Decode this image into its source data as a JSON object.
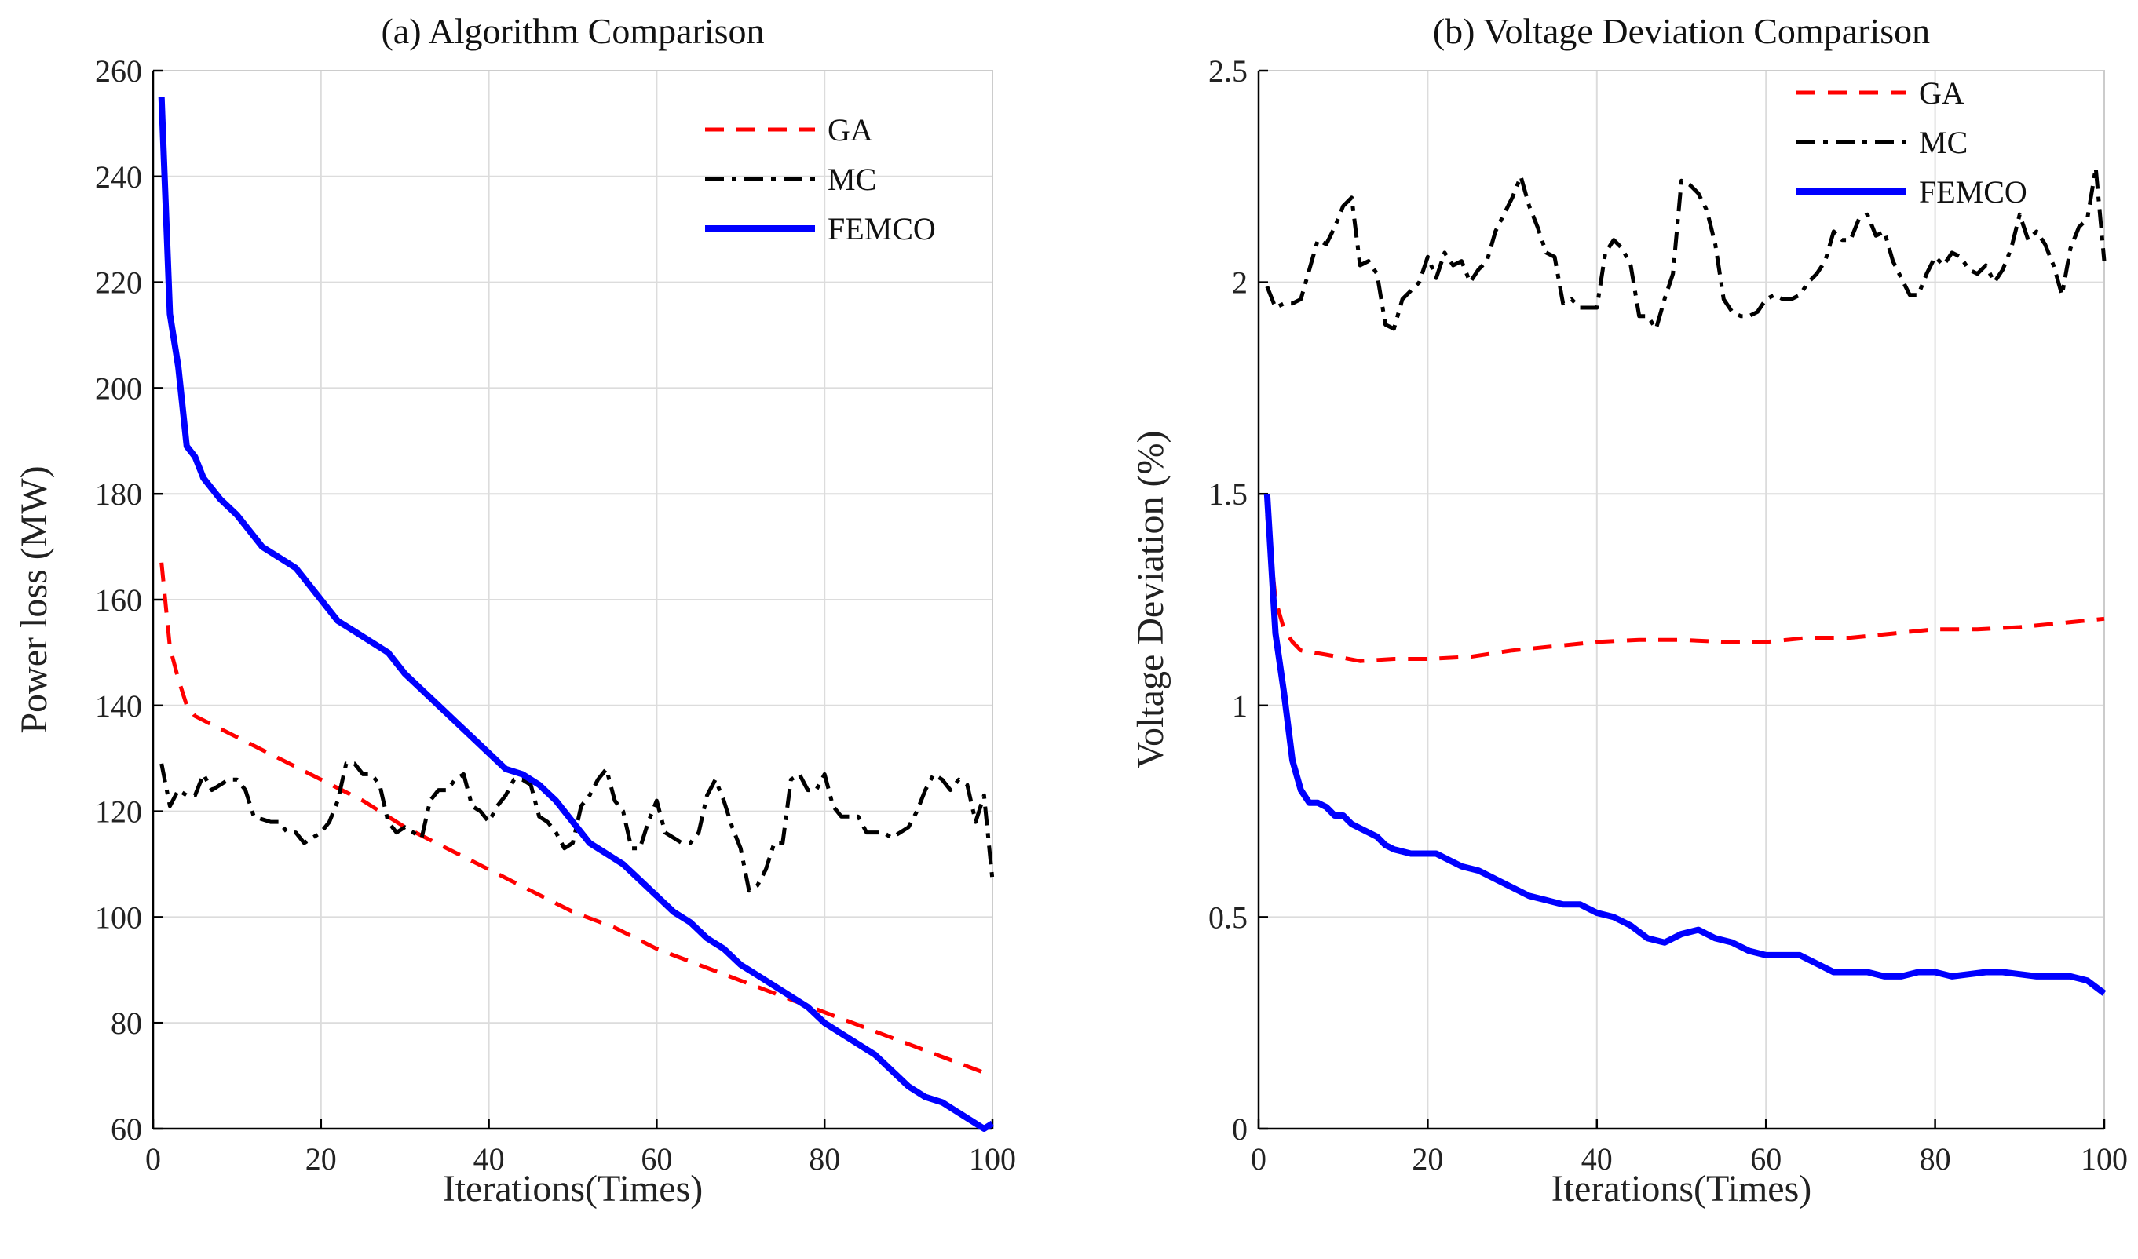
{
  "chart_data": [
    {
      "type": "line",
      "title": "(a) Algorithm Comparison",
      "xlabel": "Iterations(Times)",
      "ylabel": "Power loss (MW)",
      "xlim": [
        0,
        100
      ],
      "ylim": [
        60,
        260
      ],
      "xticks": [
        0,
        20,
        40,
        60,
        80,
        100
      ],
      "yticks": [
        60,
        80,
        100,
        120,
        140,
        160,
        180,
        200,
        220,
        240,
        260
      ],
      "grid": true,
      "legend_position": "top-right",
      "series": [
        {
          "name": "GA",
          "color": "#ff0000",
          "style": "dashed",
          "x": [
            1,
            2,
            3,
            4,
            5,
            10,
            15,
            20,
            25,
            30,
            35,
            40,
            45,
            50,
            55,
            60,
            65,
            70,
            75,
            80,
            85,
            90,
            95,
            100
          ],
          "y": [
            167,
            151,
            145,
            140,
            138,
            134,
            130,
            126,
            122,
            117,
            113,
            109,
            105,
            101,
            98,
            94,
            91,
            88,
            85,
            82,
            79,
            76,
            73,
            70
          ]
        },
        {
          "name": "MC",
          "color": "#000000",
          "style": "dashdot",
          "x": [
            1,
            2,
            3,
            4,
            5,
            6,
            7,
            8,
            9,
            10,
            11,
            12,
            14,
            15,
            16,
            17,
            18,
            20,
            21,
            22,
            23,
            24,
            25,
            26,
            27,
            28,
            29,
            30,
            31,
            32,
            33,
            34,
            35,
            36,
            37,
            38,
            39,
            40,
            41,
            42,
            43,
            44,
            45,
            46,
            47,
            48,
            49,
            50,
            51,
            52,
            53,
            54,
            55,
            56,
            57,
            58,
            59,
            60,
            61,
            62,
            63,
            64,
            65,
            66,
            67,
            68,
            69,
            70,
            71,
            72,
            73,
            74,
            75,
            76,
            77,
            78,
            79,
            80,
            81,
            82,
            83,
            84,
            85,
            86,
            87,
            88,
            89,
            90,
            91,
            92,
            93,
            94,
            95,
            96,
            97,
            98,
            99,
            100
          ],
          "y": [
            129,
            121,
            124,
            123,
            123,
            127,
            124,
            125,
            126,
            126,
            124,
            119,
            118,
            118,
            116,
            116,
            114,
            116,
            118,
            122,
            129,
            129,
            127,
            127,
            125,
            118,
            116,
            117,
            116,
            115,
            122,
            124,
            124,
            126,
            127,
            121,
            120,
            118,
            121,
            123,
            126,
            126,
            125,
            119,
            118,
            116,
            113,
            114,
            121,
            123,
            126,
            128,
            122,
            120,
            113,
            113,
            118,
            122,
            116,
            115,
            114,
            114,
            116,
            123,
            126,
            122,
            117,
            113,
            105,
            106,
            109,
            114,
            114,
            126,
            127,
            124,
            124,
            127,
            121,
            119,
            119,
            119,
            116,
            116,
            116,
            115,
            116,
            117,
            120,
            124,
            127,
            126,
            124,
            126,
            125,
            118,
            123,
            107
          ]
        },
        {
          "name": "FEMCO",
          "color": "#0000ff",
          "style": "solid",
          "x": [
            1,
            2,
            3,
            4,
            5,
            6,
            8,
            10,
            12,
            13,
            15,
            17,
            19,
            21,
            22,
            24,
            26,
            28,
            30,
            32,
            34,
            36,
            38,
            40,
            42,
            44,
            46,
            48,
            50,
            52,
            54,
            56,
            58,
            60,
            62,
            64,
            66,
            68,
            70,
            72,
            74,
            76,
            78,
            80,
            82,
            84,
            86,
            88,
            90,
            92,
            94,
            96,
            98,
            99,
            100
          ],
          "y": [
            255,
            214,
            204,
            189,
            187,
            183,
            179,
            176,
            172,
            170,
            168,
            166,
            162,
            158,
            156,
            154,
            152,
            150,
            146,
            143,
            140,
            137,
            134,
            131,
            128,
            127,
            125,
            122,
            118,
            114,
            112,
            110,
            107,
            104,
            101,
            99,
            96,
            94,
            91,
            89,
            87,
            85,
            83,
            80,
            78,
            76,
            74,
            71,
            68,
            66,
            65,
            63,
            61,
            60,
            61
          ]
        }
      ]
    },
    {
      "type": "line",
      "title": "(b) Voltage Deviation Comparison",
      "xlabel": "Iterations(Times)",
      "ylabel": "Voltage Deviation (%)",
      "xlim": [
        0,
        100
      ],
      "ylim": [
        0,
        2.5
      ],
      "xticks": [
        0,
        20,
        40,
        60,
        80,
        100
      ],
      "yticks": [
        0,
        0.5,
        1,
        1.5,
        2,
        2.5
      ],
      "grid": true,
      "legend_position": "top-right",
      "series": [
        {
          "name": "GA",
          "color": "#ff0000",
          "style": "dashed",
          "x": [
            1,
            2,
            3,
            4,
            5,
            8,
            12,
            16,
            20,
            25,
            30,
            35,
            40,
            45,
            50,
            55,
            60,
            65,
            70,
            75,
            80,
            85,
            90,
            95,
            100
          ],
          "y": [
            1.45,
            1.25,
            1.18,
            1.15,
            1.13,
            1.12,
            1.105,
            1.11,
            1.11,
            1.115,
            1.13,
            1.14,
            1.15,
            1.155,
            1.155,
            1.15,
            1.15,
            1.16,
            1.16,
            1.17,
            1.18,
            1.18,
            1.185,
            1.195,
            1.205
          ]
        },
        {
          "name": "MC",
          "color": "#000000",
          "style": "dashdot",
          "x": [
            1,
            2,
            3,
            4,
            5,
            6,
            7,
            8,
            9,
            10,
            11,
            12,
            13,
            14,
            15,
            16,
            17,
            18,
            19,
            20,
            21,
            22,
            23,
            24,
            25,
            26,
            27,
            28,
            29,
            30,
            31,
            32,
            33,
            34,
            35,
            36,
            37,
            38,
            39,
            40,
            41,
            42,
            43,
            44,
            45,
            46,
            47,
            48,
            49,
            50,
            51,
            52,
            53,
            54,
            55,
            56,
            57,
            58,
            59,
            60,
            61,
            62,
            63,
            64,
            65,
            66,
            67,
            68,
            69,
            70,
            71,
            72,
            73,
            74,
            75,
            76,
            77,
            78,
            79,
            80,
            81,
            82,
            83,
            84,
            85,
            86,
            87,
            88,
            89,
            90,
            91,
            92,
            93,
            94,
            95,
            96,
            97,
            98,
            99,
            100
          ],
          "y": [
            1.99,
            1.94,
            1.95,
            1.95,
            1.96,
            2.03,
            2.1,
            2.09,
            2.13,
            2.18,
            2.2,
            2.04,
            2.05,
            2.02,
            1.9,
            1.89,
            1.96,
            1.98,
            2.0,
            2.06,
            2.01,
            2.07,
            2.04,
            2.05,
            2.0,
            2.03,
            2.05,
            2.12,
            2.16,
            2.2,
            2.25,
            2.18,
            2.13,
            2.07,
            2.06,
            1.95,
            1.96,
            1.94,
            1.94,
            1.94,
            2.07,
            2.1,
            2.08,
            2.04,
            1.92,
            1.92,
            1.89,
            1.96,
            2.02,
            2.24,
            2.23,
            2.21,
            2.17,
            2.09,
            1.96,
            1.93,
            1.92,
            1.92,
            1.93,
            1.96,
            1.97,
            1.96,
            1.96,
            1.97,
            2.0,
            2.02,
            2.05,
            2.12,
            2.1,
            2.1,
            2.15,
            2.16,
            2.11,
            2.12,
            2.05,
            2.01,
            1.97,
            1.97,
            2.02,
            2.06,
            2.04,
            2.07,
            2.06,
            2.03,
            2.02,
            2.04,
            2.0,
            2.03,
            2.08,
            2.16,
            2.1,
            2.12,
            2.09,
            2.04,
            1.97,
            2.08,
            2.13,
            2.15,
            2.27,
            2.05
          ]
        },
        {
          "name": "FEMCO",
          "color": "#0000ff",
          "style": "solid",
          "x": [
            1,
            2,
            3,
            4,
            5,
            6,
            7,
            8,
            9,
            10,
            11,
            12,
            13,
            14,
            15,
            16,
            18,
            20,
            21,
            22,
            24,
            26,
            28,
            30,
            32,
            34,
            36,
            38,
            40,
            42,
            44,
            46,
            48,
            50,
            52,
            54,
            56,
            58,
            60,
            62,
            64,
            66,
            68,
            70,
            72,
            74,
            76,
            78,
            80,
            82,
            84,
            86,
            88,
            90,
            92,
            94,
            96,
            98,
            100
          ],
          "y": [
            1.5,
            1.17,
            1.03,
            0.87,
            0.8,
            0.77,
            0.77,
            0.76,
            0.74,
            0.74,
            0.72,
            0.71,
            0.7,
            0.69,
            0.67,
            0.66,
            0.65,
            0.65,
            0.65,
            0.64,
            0.62,
            0.61,
            0.59,
            0.57,
            0.55,
            0.54,
            0.53,
            0.53,
            0.51,
            0.5,
            0.48,
            0.45,
            0.44,
            0.46,
            0.47,
            0.45,
            0.44,
            0.42,
            0.41,
            0.41,
            0.41,
            0.39,
            0.37,
            0.37,
            0.37,
            0.36,
            0.36,
            0.37,
            0.37,
            0.36,
            0.365,
            0.37,
            0.37,
            0.365,
            0.36,
            0.36,
            0.36,
            0.35,
            0.32
          ]
        }
      ]
    }
  ]
}
